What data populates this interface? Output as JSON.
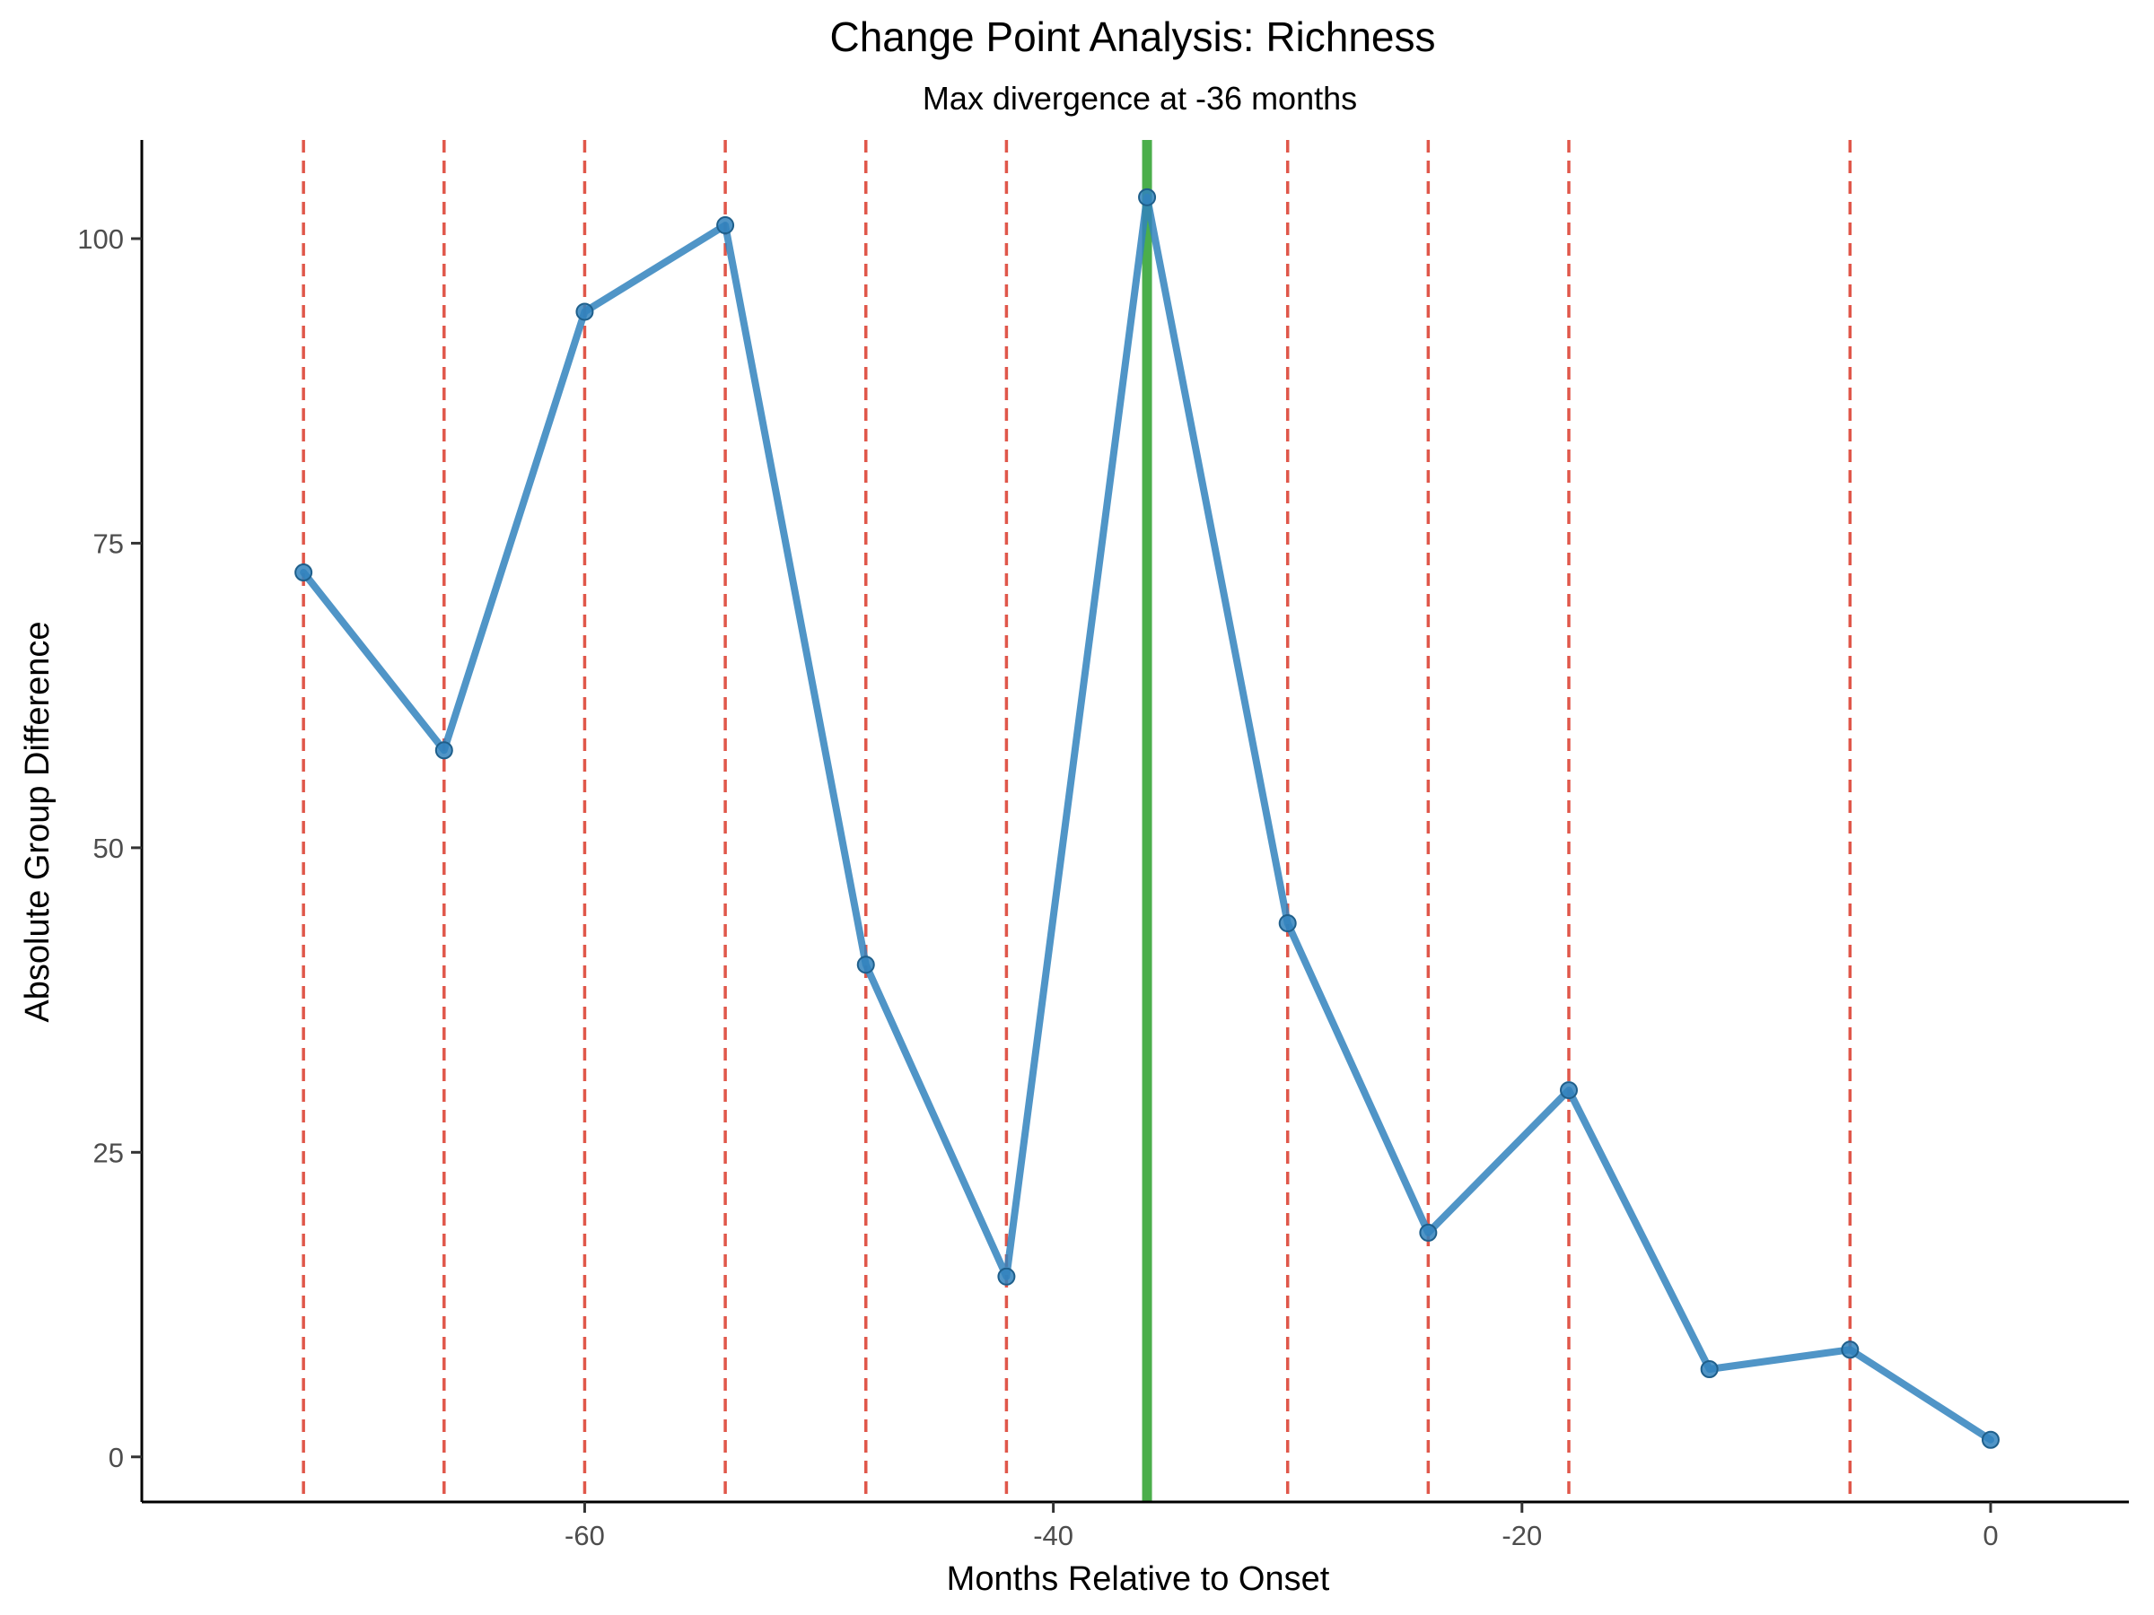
{
  "chart_data": {
    "type": "line",
    "title": "Change Point Analysis: Richness",
    "subtitle": "Max divergence at -36 months",
    "xlabel": "Months Relative to Onset",
    "ylabel": "Absolute Group Difference",
    "xlim": [
      -78.9,
      5.9
    ],
    "ylim": [
      -3.7,
      108.1
    ],
    "x_ticks": [
      -60,
      -40,
      -20,
      0
    ],
    "y_ticks": [
      0,
      25,
      50,
      75,
      100
    ],
    "grid": false,
    "series": [
      {
        "color": "#3182bd",
        "x": [
          -72,
          -66,
          -60,
          -54,
          -48,
          -42,
          -36,
          -30,
          -24,
          -18,
          -12,
          -6,
          0
        ],
        "y": [
          72.6,
          58.0,
          94.0,
          101.1,
          40.4,
          14.8,
          103.4,
          43.8,
          18.4,
          30.1,
          7.2,
          8.8,
          1.4
        ]
      }
    ],
    "reference_lines": {
      "dashed_red": {
        "color": "#e0574a",
        "x": [
          -72,
          -66,
          -60,
          -54,
          -48,
          -42,
          -30,
          -24,
          -18,
          -6
        ]
      },
      "solid_green": {
        "color": "#2ca02c",
        "x": [
          -36
        ]
      }
    }
  }
}
